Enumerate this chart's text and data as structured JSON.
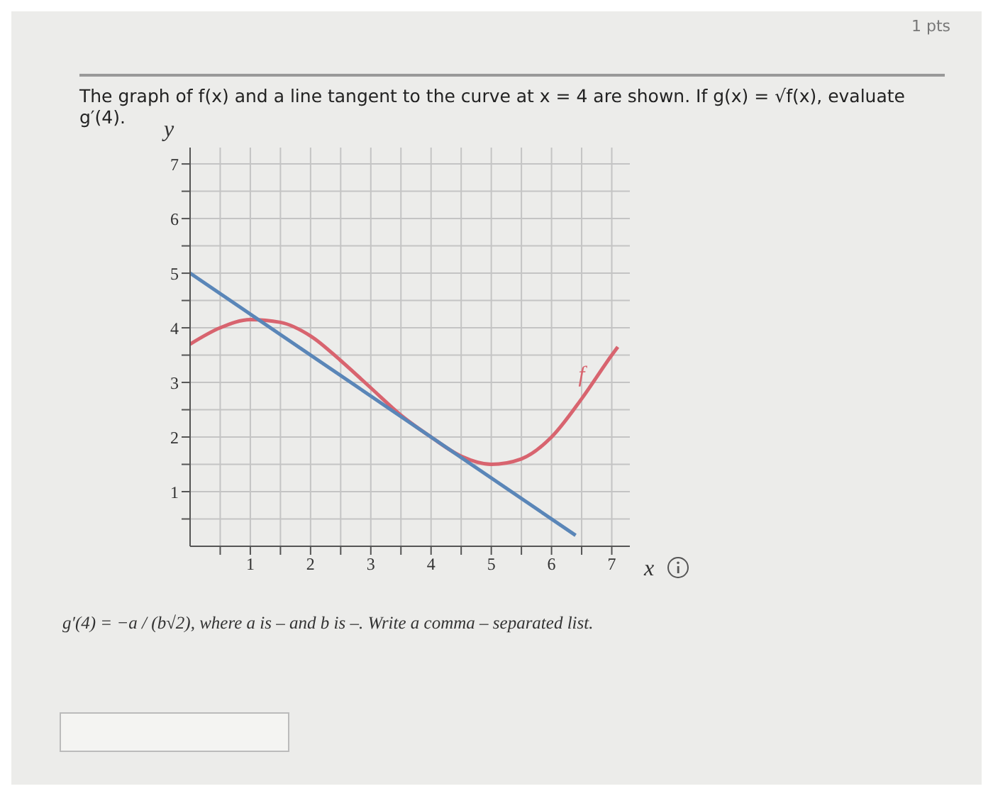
{
  "chart_data": {
    "type": "line",
    "title": "The graph of f(x) and a line tangent to the curve at x = 4 are shown. If g(x) = √f(x), evaluate g′(4).",
    "annotations": [
      "1 pts",
      "g′(4) = −a / (b√2), where a is – and b is –. Write a comma – separated list."
    ],
    "xlabel": "x",
    "ylabel": "y",
    "xlim": [
      0,
      7.3
    ],
    "ylim": [
      0,
      7.3
    ],
    "xticks": [
      {
        "value": 0.5,
        "label": null
      },
      1,
      {
        "value": 1.5,
        "label": null
      },
      2,
      {
        "value": 2.5,
        "label": null
      },
      3,
      {
        "value": 3.5,
        "label": null
      },
      4,
      {
        "value": 4.5,
        "label": null
      },
      5,
      {
        "value": 5.5,
        "label": null
      },
      6,
      {
        "value": 6.5,
        "label": null
      },
      7
    ],
    "yticks": [
      {
        "value": 0.5,
        "label": null
      },
      1,
      {
        "value": 1.5,
        "label": null
      },
      2,
      {
        "value": 2.5,
        "label": null
      },
      3,
      {
        "value": 3.5,
        "label": null
      },
      4,
      {
        "value": 4.5,
        "label": null
      },
      5,
      {
        "value": 5.5,
        "label": null
      },
      6,
      {
        "value": 6.5,
        "label": null
      },
      7
    ],
    "grid": true,
    "legend": false,
    "marker": "none",
    "line_style": "solid",
    "series": [
      {
        "name": "f",
        "color": "#d8646f",
        "x": [
          0,
          0.5,
          1,
          1.5,
          2,
          2.5,
          3,
          3.5,
          4,
          4.5,
          5,
          5.5,
          6,
          6.5,
          7,
          7.1
        ],
        "values": [
          3.7,
          4.0,
          4.15,
          4.1,
          3.85,
          3.4,
          2.9,
          2.4,
          2.0,
          1.65,
          1.5,
          1.6,
          2.0,
          2.7,
          3.5,
          3.65
        ]
      },
      {
        "color": "#5a86b8",
        "x": [
          0,
          6.4
        ],
        "values": [
          5,
          0.2
        ]
      }
    ]
  }
}
